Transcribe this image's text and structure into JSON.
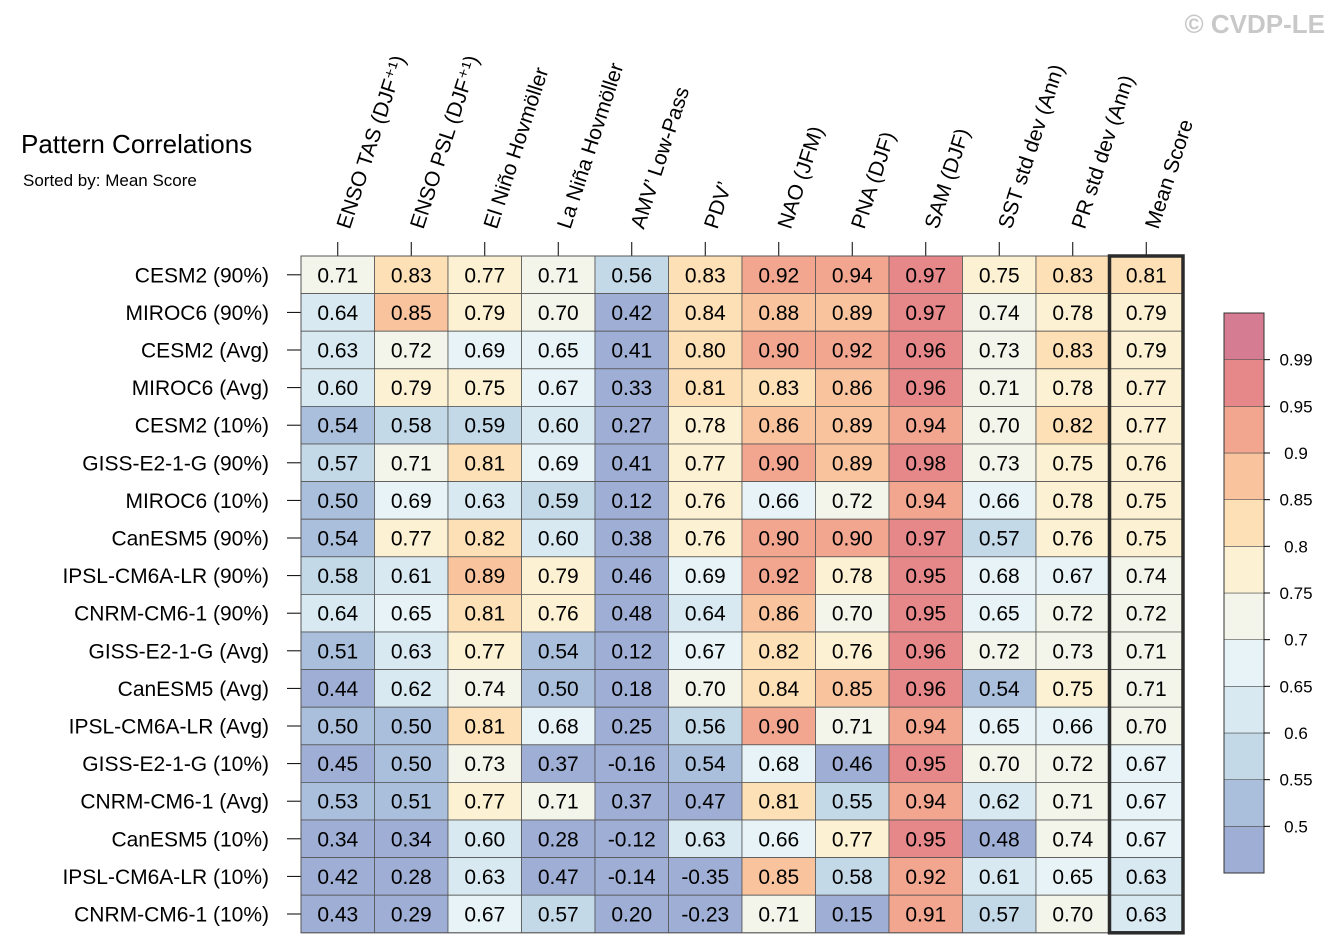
{
  "watermark": "© CVDP-LE",
  "chart_data": {
    "type": "heatmap",
    "title": "Pattern Correlations",
    "subtitle": "Sorted by: Mean Score",
    "columns": [
      "ENSO TAS (DJF⁺¹)",
      "ENSO PSL (DJF⁺¹)",
      "El Niño Hovmöller",
      "La Niña Hovmöller",
      "AMV’ Low-Pass",
      "PDV’",
      "NAO (JFM)",
      "PNA (DJF)",
      "SAM (DJF)",
      "SST std dev (Ann)",
      "PR std dev (Ann)",
      "Mean Score"
    ],
    "rows": [
      "CESM2 (90%)",
      "MIROC6 (90%)",
      "CESM2 (Avg)",
      "MIROC6 (Avg)",
      "CESM2 (10%)",
      "GISS-E2-1-G (90%)",
      "MIROC6 (10%)",
      "CanESM5 (90%)",
      "IPSL-CM6A-LR (90%)",
      "CNRM-CM6-1 (90%)",
      "GISS-E2-1-G (Avg)",
      "CanESM5 (Avg)",
      "IPSL-CM6A-LR (Avg)",
      "GISS-E2-1-G (10%)",
      "CNRM-CM6-1 (Avg)",
      "CanESM5 (10%)",
      "IPSL-CM6A-LR (10%)",
      "CNRM-CM6-1 (10%)"
    ],
    "values": [
      [
        0.71,
        0.83,
        0.77,
        0.71,
        0.56,
        0.83,
        0.92,
        0.94,
        0.97,
        0.75,
        0.83,
        0.81
      ],
      [
        0.64,
        0.85,
        0.79,
        0.7,
        0.42,
        0.84,
        0.88,
        0.89,
        0.97,
        0.74,
        0.78,
        0.79
      ],
      [
        0.63,
        0.72,
        0.69,
        0.65,
        0.41,
        0.8,
        0.9,
        0.92,
        0.96,
        0.73,
        0.83,
        0.79
      ],
      [
        0.6,
        0.79,
        0.75,
        0.67,
        0.33,
        0.81,
        0.83,
        0.86,
        0.96,
        0.71,
        0.78,
        0.77
      ],
      [
        0.54,
        0.58,
        0.59,
        0.6,
        0.27,
        0.78,
        0.86,
        0.89,
        0.94,
        0.7,
        0.82,
        0.77
      ],
      [
        0.57,
        0.71,
        0.81,
        0.69,
        0.41,
        0.77,
        0.9,
        0.89,
        0.98,
        0.73,
        0.75,
        0.76
      ],
      [
        0.5,
        0.69,
        0.63,
        0.59,
        0.12,
        0.76,
        0.66,
        0.72,
        0.94,
        0.66,
        0.78,
        0.75
      ],
      [
        0.54,
        0.77,
        0.82,
        0.6,
        0.38,
        0.76,
        0.9,
        0.9,
        0.97,
        0.57,
        0.76,
        0.75
      ],
      [
        0.58,
        0.61,
        0.89,
        0.79,
        0.46,
        0.69,
        0.92,
        0.78,
        0.95,
        0.68,
        0.67,
        0.74
      ],
      [
        0.64,
        0.65,
        0.81,
        0.76,
        0.48,
        0.64,
        0.86,
        0.7,
        0.95,
        0.65,
        0.72,
        0.72
      ],
      [
        0.51,
        0.63,
        0.77,
        0.54,
        0.12,
        0.67,
        0.82,
        0.76,
        0.96,
        0.72,
        0.73,
        0.71
      ],
      [
        0.44,
        0.62,
        0.74,
        0.5,
        0.18,
        0.7,
        0.84,
        0.85,
        0.96,
        0.54,
        0.75,
        0.71
      ],
      [
        0.5,
        0.5,
        0.81,
        0.68,
        0.25,
        0.56,
        0.9,
        0.71,
        0.94,
        0.65,
        0.66,
        0.7
      ],
      [
        0.45,
        0.5,
        0.73,
        0.37,
        -0.16,
        0.54,
        0.68,
        0.46,
        0.95,
        0.7,
        0.72,
        0.67
      ],
      [
        0.53,
        0.51,
        0.77,
        0.71,
        0.37,
        0.47,
        0.81,
        0.55,
        0.94,
        0.62,
        0.71,
        0.67
      ],
      [
        0.34,
        0.34,
        0.6,
        0.28,
        -0.12,
        0.63,
        0.66,
        0.77,
        0.95,
        0.48,
        0.74,
        0.67
      ],
      [
        0.42,
        0.28,
        0.63,
        0.47,
        -0.14,
        -0.35,
        0.85,
        0.58,
        0.92,
        0.61,
        0.65,
        0.63
      ],
      [
        0.43,
        0.29,
        0.67,
        0.57,
        0.2,
        -0.23,
        0.71,
        0.15,
        0.91,
        0.57,
        0.7,
        0.63
      ]
    ],
    "value_labels": [
      [
        "0.71",
        "0.83",
        "0.77",
        "0.71",
        "0.56",
        "0.83",
        "0.92",
        "0.94",
        "0.97",
        "0.75",
        "0.83",
        "0.81"
      ],
      [
        "0.64",
        "0.85",
        "0.79",
        "0.70",
        "0.42",
        "0.84",
        "0.88",
        "0.89",
        "0.97",
        "0.74",
        "0.78",
        "0.79"
      ],
      [
        "0.63",
        "0.72",
        "0.69",
        "0.65",
        "0.41",
        "0.80",
        "0.90",
        "0.92",
        "0.96",
        "0.73",
        "0.83",
        "0.79"
      ],
      [
        "0.60",
        "0.79",
        "0.75",
        "0.67",
        "0.33",
        "0.81",
        "0.83",
        "0.86",
        "0.96",
        "0.71",
        "0.78",
        "0.77"
      ],
      [
        "0.54",
        "0.58",
        "0.59",
        "0.60",
        "0.27",
        "0.78",
        "0.86",
        "0.89",
        "0.94",
        "0.70",
        "0.82",
        "0.77"
      ],
      [
        "0.57",
        "0.71",
        "0.81",
        "0.69",
        "0.41",
        "0.77",
        "0.90",
        "0.89",
        "0.98",
        "0.73",
        "0.75",
        "0.76"
      ],
      [
        "0.50",
        "0.69",
        "0.63",
        "0.59",
        "0.12",
        "0.76",
        "0.66",
        "0.72",
        "0.94",
        "0.66",
        "0.78",
        "0.75"
      ],
      [
        "0.54",
        "0.77",
        "0.82",
        "0.60",
        "0.38",
        "0.76",
        "0.90",
        "0.90",
        "0.97",
        "0.57",
        "0.76",
        "0.75"
      ],
      [
        "0.58",
        "0.61",
        "0.89",
        "0.79",
        "0.46",
        "0.69",
        "0.92",
        "0.78",
        "0.95",
        "0.68",
        "0.67",
        "0.74"
      ],
      [
        "0.64",
        "0.65",
        "0.81",
        "0.76",
        "0.48",
        "0.64",
        "0.86",
        "0.70",
        "0.95",
        "0.65",
        "0.72",
        "0.72"
      ],
      [
        "0.51",
        "0.63",
        "0.77",
        "0.54",
        "0.12",
        "0.67",
        "0.82",
        "0.76",
        "0.96",
        "0.72",
        "0.73",
        "0.71"
      ],
      [
        "0.44",
        "0.62",
        "0.74",
        "0.50",
        "0.18",
        "0.70",
        "0.84",
        "0.85",
        "0.96",
        "0.54",
        "0.75",
        "0.71"
      ],
      [
        "0.50",
        "0.50",
        "0.81",
        "0.68",
        "0.25",
        "0.56",
        "0.90",
        "0.71",
        "0.94",
        "0.65",
        "0.66",
        "0.70"
      ],
      [
        "0.45",
        "0.50",
        "0.73",
        "0.37",
        "-0.16",
        "0.54",
        "0.68",
        "0.46",
        "0.95",
        "0.70",
        "0.72",
        "0.67"
      ],
      [
        "0.53",
        "0.51",
        "0.77",
        "0.71",
        "0.37",
        "0.47",
        "0.81",
        "0.55",
        "0.94",
        "0.62",
        "0.71",
        "0.67"
      ],
      [
        "0.34",
        "0.34",
        "0.60",
        "0.28",
        "-0.12",
        "0.63",
        "0.66",
        "0.77",
        "0.95",
        "0.48",
        "0.74",
        "0.67"
      ],
      [
        "0.42",
        "0.28",
        "0.63",
        "0.47",
        "-0.14",
        "-0.35",
        "0.85",
        "0.58",
        "0.92",
        "0.61",
        "0.65",
        "0.63"
      ],
      [
        "0.43",
        "0.29",
        "0.67",
        "0.57",
        "0.20",
        "-0.23",
        "0.71",
        "0.15",
        "0.91",
        "0.57",
        "0.70",
        "0.63"
      ]
    ],
    "highlight_column": "Mean Score",
    "colorbar": {
      "levels": [
        0.5,
        0.55,
        0.6,
        0.65,
        0.7,
        0.75,
        0.8,
        0.85,
        0.9,
        0.95,
        0.99
      ],
      "labels": [
        "0.5",
        "0.55",
        "0.6",
        "0.65",
        "0.7",
        "0.75",
        "0.8",
        "0.85",
        "0.9",
        "0.95",
        "0.99"
      ],
      "colors": [
        "#9eaed4",
        "#aabfdc",
        "#c3d9e8",
        "#d8e9f1",
        "#e7f3f6",
        "#f3f4ea",
        "#fcf1d2",
        "#fde0b5",
        "#f9c49d",
        "#f2a68f",
        "#e6878a",
        "#d67c92"
      ],
      "placement": "right"
    }
  }
}
